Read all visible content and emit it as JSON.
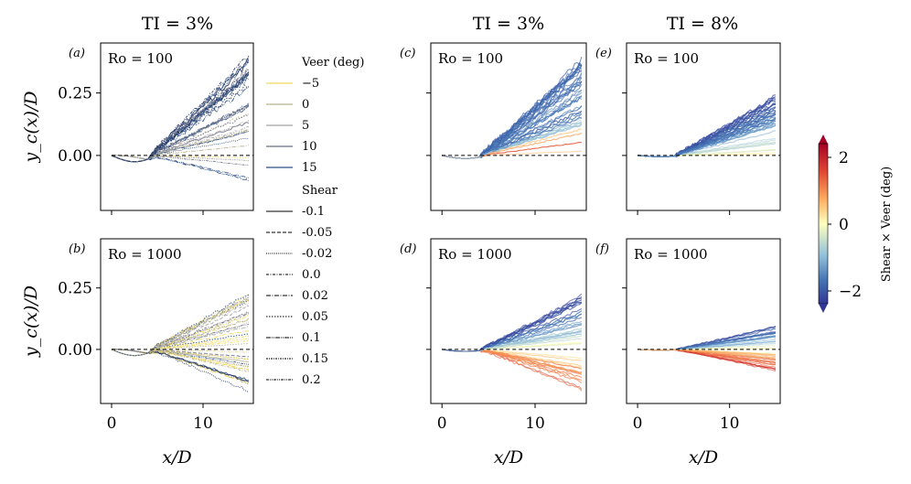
{
  "chart_data": [
    {
      "panel": "(a)",
      "column_title": "TI = 3%",
      "ro_label": "Ro = 100",
      "type": "line",
      "color_by": "veer",
      "ylim": [
        -0.22,
        0.45
      ],
      "xlim": [
        -1.2,
        15.5
      ],
      "yticks": [
        "0.25",
        "0.00"
      ],
      "xticks": [
        "0",
        "10"
      ],
      "ylabel": "y_c(x)/D",
      "xlabel": "",
      "spread_pos": 0.4,
      "spread_neg": 0.1,
      "dip": 0.025
    },
    {
      "panel": "(b)",
      "column_title": "",
      "ro_label": "Ro = 1000",
      "type": "line",
      "color_by": "veer",
      "ylim": [
        -0.22,
        0.45
      ],
      "xlim": [
        -1.2,
        15.5
      ],
      "yticks": [
        "0.25",
        "0.00"
      ],
      "xticks": [
        "0",
        "10"
      ],
      "ylabel": "y_c(x)/D",
      "xlabel": "x/D",
      "spread_pos": 0.23,
      "spread_neg": 0.17,
      "dip": 0.025
    },
    {
      "panel": "(c)",
      "column_title": "TI = 3%",
      "ro_label": "Ro = 100",
      "type": "line",
      "color_by": "shear_x_veer",
      "ylim": [
        -0.22,
        0.45
      ],
      "xlim": [
        -1.2,
        15.5
      ],
      "yticks": [],
      "xticks": [
        "0",
        "10"
      ],
      "ylabel": "",
      "xlabel": "",
      "spread_pos": 0.4,
      "spread_neg": 0.0,
      "dip": 0.012
    },
    {
      "panel": "(d)",
      "column_title": "",
      "ro_label": "Ro = 1000",
      "type": "line",
      "color_by": "shear_x_veer",
      "ylim": [
        -0.22,
        0.45
      ],
      "xlim": [
        -1.2,
        15.5
      ],
      "yticks": [],
      "xticks": [
        "0",
        "10"
      ],
      "ylabel": "",
      "xlabel": "x/D",
      "spread_pos": 0.22,
      "spread_neg": 0.17,
      "dip": 0.008
    },
    {
      "panel": "(e)",
      "column_title": "TI = 8%",
      "ro_label": "Ro = 100",
      "type": "line",
      "color_by": "shear_x_veer",
      "ylim": [
        -0.22,
        0.45
      ],
      "xlim": [
        -1.2,
        15.5
      ],
      "yticks": [],
      "xticks": [
        "0",
        "10"
      ],
      "ylabel": "",
      "xlabel": "",
      "spread_pos": 0.24,
      "spread_neg": 0.0,
      "dip": 0.005
    },
    {
      "panel": "(f)",
      "column_title": "",
      "ro_label": "Ro = 1000",
      "type": "line",
      "color_by": "shear_x_veer",
      "ylim": [
        -0.22,
        0.45
      ],
      "xlim": [
        -1.2,
        15.5
      ],
      "yticks": [],
      "xticks": [
        "0",
        "10"
      ],
      "ylabel": "",
      "xlabel": "x/D",
      "spread_pos": 0.1,
      "spread_neg": 0.09,
      "dip": 0.003
    }
  ],
  "legend": {
    "veer_title": "Veer (deg)",
    "veer": [
      {
        "label": "−5",
        "color": "#f0d85a"
      },
      {
        "label": "0",
        "color": "#b8b28e"
      },
      {
        "label": "5",
        "color": "#a4a4a6"
      },
      {
        "label": "10",
        "color": "#6b6f86"
      },
      {
        "label": "15",
        "color": "#2c4f86"
      }
    ],
    "shear_title": "Shear",
    "shear": [
      {
        "label": "-0.1",
        "dash": "none"
      },
      {
        "label": "-0.05",
        "dash": "4,2"
      },
      {
        "label": "-0.02",
        "dash": "1,1.2"
      },
      {
        "label": "0.0",
        "dash": "3,1.5,1,1.5"
      },
      {
        "label": "0.02",
        "dash": "5,1.5,1,1.5"
      },
      {
        "label": "0.05",
        "dash": "1.5,1.5"
      },
      {
        "label": "0.1",
        "dash": "5,1,1,1,1,1"
      },
      {
        "label": "0.15",
        "dash": "2,1,1,1"
      },
      {
        "label": "0.2",
        "dash": "3,1,1,1,1,1"
      }
    ]
  },
  "colorbar": {
    "label": "Shear × Veer (deg)",
    "ticks": [
      "2",
      "0",
      "−2"
    ],
    "range": [
      -2.5,
      2.5
    ]
  }
}
